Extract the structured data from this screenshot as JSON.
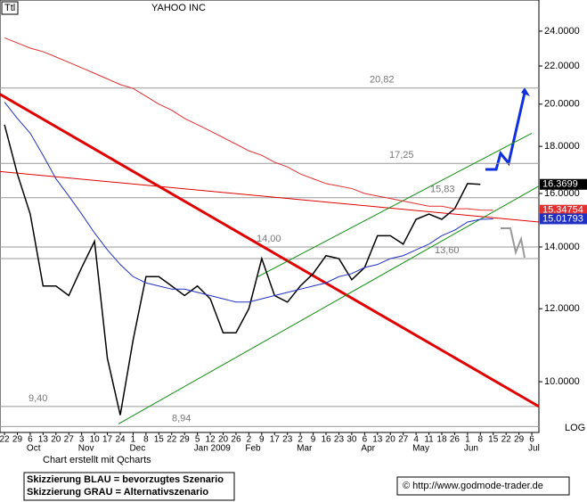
{
  "chart_data": {
    "type": "line",
    "log_scale": true,
    "header": {
      "ticker": "Ttl",
      "name": "YAHOO INC"
    },
    "credit": "Chart erstellt mit Qcharts",
    "axis_note": "LOG",
    "legend_notes": [
      "Skizzierung BLAU = bevorzugtes Szenario",
      "Skizzierung GRAU = Alternativszenario"
    ],
    "copyright": "© http://www.godmode-trader.de",
    "categories": [
      "22",
      "29",
      "6",
      "13",
      "20",
      "27",
      "3",
      "10",
      "17",
      "24",
      "1",
      "8",
      "15",
      "22",
      "29",
      "5",
      "12",
      "20",
      "26",
      "2",
      "9",
      "17",
      "23",
      "2",
      "9",
      "16",
      "23",
      "30",
      "6",
      "13",
      "20",
      "27",
      "4",
      "11",
      "18",
      "26",
      "1",
      "8",
      "15",
      "22",
      "29",
      "6"
    ],
    "months": [
      null,
      null,
      "Oct",
      null,
      null,
      null,
      "Nov",
      null,
      null,
      null,
      "Dec",
      null,
      null,
      null,
      null,
      "Jan 2009",
      null,
      null,
      null,
      "Feb",
      null,
      null,
      null,
      "Mar",
      null,
      null,
      null,
      null,
      "Apr",
      null,
      null,
      null,
      "May",
      null,
      null,
      null,
      "Jun",
      null,
      null,
      null,
      null,
      "Jul"
    ],
    "xlim": [
      -0.35,
      41.55
    ],
    "ylim": [
      8.81,
      25.94
    ],
    "yticks": [
      {
        "value": 10,
        "label": "10.0000"
      },
      {
        "value": 12,
        "label": "12.0000"
      },
      {
        "value": 14,
        "label": "14.0000"
      },
      {
        "value": 16,
        "label": "16.0000"
      },
      {
        "value": 18,
        "label": "18.0000"
      },
      {
        "value": 20,
        "label": "20.0000"
      },
      {
        "value": 22,
        "label": "22.0000"
      },
      {
        "value": 24,
        "label": "24.0000"
      }
    ],
    "series": [
      {
        "color": "#000000",
        "values": [
          19.0,
          16.8,
          15.2,
          12.7,
          12.7,
          12.4,
          13.3,
          14.2,
          10.6,
          9.2,
          11.1,
          13.0,
          13.0,
          12.7,
          12.4,
          12.7,
          12.3,
          11.3,
          11.3,
          12.0,
          13.6,
          12.4,
          12.2,
          12.7,
          13.1,
          13.7,
          13.6,
          12.9,
          13.3,
          14.4,
          14.4,
          14.1,
          15.0,
          15.2,
          15.0,
          15.4,
          16.4,
          16.3699,
          null,
          null,
          null,
          null
        ]
      },
      {
        "color": "#2030c0",
        "values": [
          20.1,
          19.3,
          18.6,
          17.6,
          16.6,
          15.9,
          15.2,
          14.5,
          13.9,
          13.4,
          13.0,
          12.8,
          12.7,
          12.6,
          12.6,
          12.5,
          12.4,
          12.3,
          12.2,
          12.2,
          12.3,
          12.4,
          12.5,
          12.6,
          12.7,
          12.8,
          13.0,
          13.1,
          13.3,
          13.4,
          13.6,
          13.7,
          13.9,
          14.1,
          14.4,
          14.6,
          14.9,
          15.0,
          15.01793,
          null,
          null,
          null
        ]
      },
      {
        "color": "#e03030",
        "values": [
          23.6,
          23.3,
          23.0,
          22.8,
          22.5,
          22.2,
          21.9,
          21.6,
          21.3,
          21.0,
          20.8,
          20.4,
          20.0,
          19.7,
          19.3,
          19.0,
          18.7,
          18.4,
          18.1,
          17.8,
          17.6,
          17.3,
          17.1,
          16.8,
          16.6,
          16.4,
          16.3,
          16.2,
          16.0,
          15.9,
          15.8,
          15.7,
          15.6,
          15.5,
          15.5,
          15.4,
          15.4,
          15.35,
          15.34754,
          null,
          null,
          null
        ]
      }
    ],
    "price_tags": [
      {
        "value": 16.3699,
        "color": "#000000"
      },
      {
        "value": 15.34754,
        "color": "#e03030"
      },
      {
        "value": 15.01793,
        "color": "#2030c0"
      }
    ],
    "trendlines": [
      {
        "color": "#e00000",
        "width": 3,
        "x": [
          -0.35,
          41.55
        ],
        "values": [
          20.5,
          9.4
        ]
      },
      {
        "color": "#e00000",
        "width": 1,
        "x": [
          -0.35,
          41.55
        ],
        "values": [
          16.9,
          14.9
        ]
      },
      {
        "color": "#109010",
        "width": 1,
        "x": [
          8.86,
          41.55
        ],
        "values": [
          9.0,
          16.3
        ]
      },
      {
        "color": "#109010",
        "width": 1,
        "x": [
          19.7,
          41.0
        ],
        "values": [
          13.0,
          18.6
        ]
      }
    ],
    "levels": [
      {
        "value": 20.82,
        "label": "20,82"
      },
      {
        "value": 17.25,
        "label": "17,25"
      },
      {
        "value": 15.83,
        "label": "15,83"
      },
      {
        "value": 14.0,
        "label": "14,00"
      },
      {
        "value": 13.6,
        "label": "13,60"
      },
      {
        "value": 9.4,
        "label": "9,40"
      },
      {
        "value": 8.94,
        "label": "8,94"
      }
    ]
  }
}
